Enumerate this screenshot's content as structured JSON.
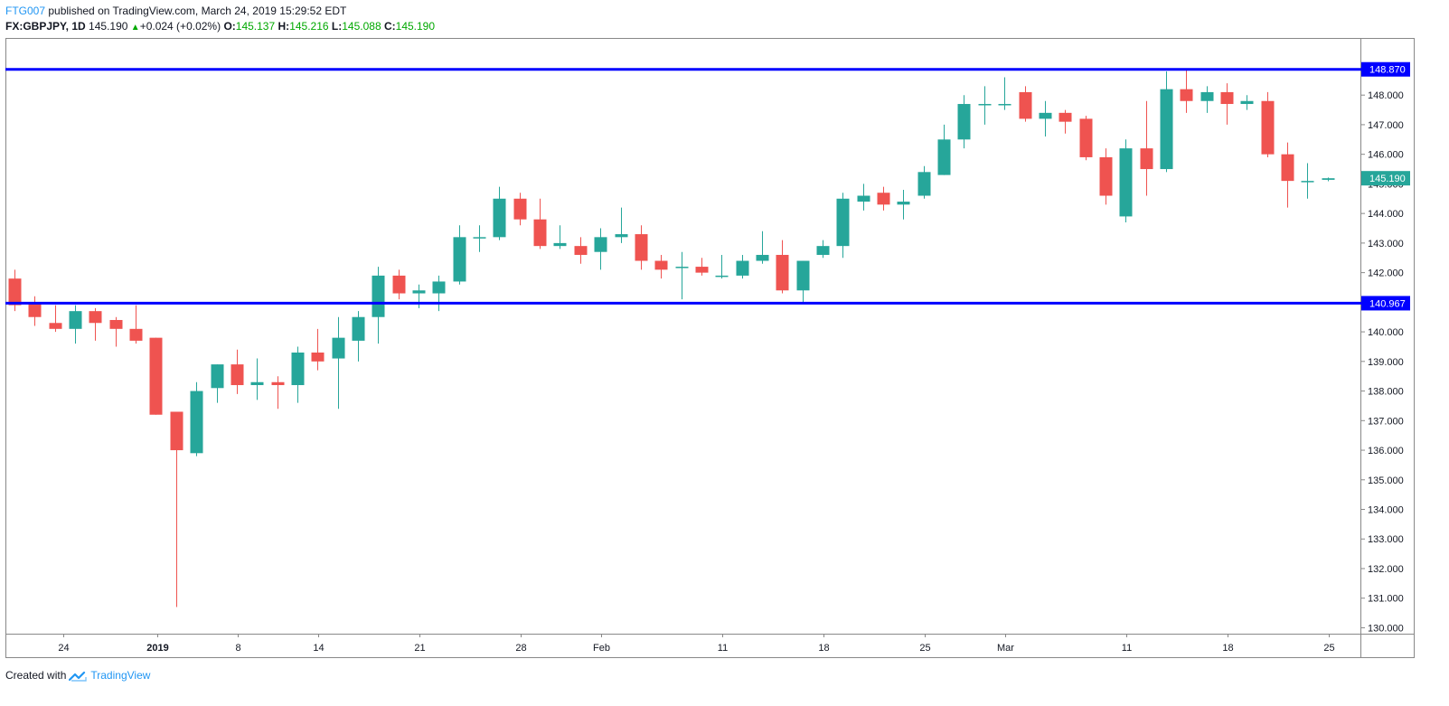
{
  "header": {
    "author": "FTG007",
    "published_text": "published on TradingView.com, March 24, 2019 15:29:52 EDT",
    "symbol": "FX:GBPJPY, 1D",
    "last": "145.190",
    "change": "+0.024 (+0.02%)",
    "o_label": "O:",
    "o_value": "145.137",
    "h_label": "H:",
    "h_value": "145.216",
    "l_label": "L:",
    "l_value": "145.088",
    "c_label": "C:",
    "c_value": "145.190"
  },
  "footer": {
    "created_with": "Created with",
    "brand": "TradingView",
    "logo_icon": "tradingview-logo-icon"
  },
  "colors": {
    "up": "#26a69a",
    "down": "#ef5350",
    "level": "#0000ff",
    "author": "#2196f3",
    "ohlc_value": "#00a800"
  },
  "chart_data": {
    "type": "candlestick",
    "x_ticks": [
      "24",
      "2019",
      "8",
      "14",
      "21",
      "28",
      "Feb",
      "11",
      "18",
      "25",
      "Mar",
      "11",
      "18",
      "25"
    ],
    "y_ticks": [
      "130.000",
      "131.000",
      "132.000",
      "133.000",
      "134.000",
      "135.000",
      "136.000",
      "137.000",
      "138.000",
      "139.000",
      "140.000",
      "141.000",
      "142.000",
      "143.000",
      "144.000",
      "145.000",
      "146.000",
      "147.000",
      "148.000"
    ],
    "ylim": [
      129.8,
      149.9
    ],
    "price_labels": {
      "upper_level": "148.870",
      "lower_level": "140.967",
      "last_price": "145.190"
    },
    "horizontal_levels": [
      148.87,
      140.967
    ],
    "last_price": 145.19,
    "candles": [
      {
        "o": 141.8,
        "h": 142.1,
        "l": 140.7,
        "c": 140.9
      },
      {
        "o": 141.0,
        "h": 141.2,
        "l": 140.2,
        "c": 140.5
      },
      {
        "o": 140.3,
        "h": 140.9,
        "l": 140.0,
        "c": 140.1
      },
      {
        "o": 140.1,
        "h": 140.9,
        "l": 139.6,
        "c": 140.7
      },
      {
        "o": 140.7,
        "h": 140.8,
        "l": 139.7,
        "c": 140.3
      },
      {
        "o": 140.4,
        "h": 140.5,
        "l": 139.5,
        "c": 140.1
      },
      {
        "o": 140.1,
        "h": 140.9,
        "l": 139.6,
        "c": 139.7
      },
      {
        "o": 139.8,
        "h": 139.8,
        "l": 137.2,
        "c": 137.2
      },
      {
        "o": 137.3,
        "h": 137.3,
        "l": 130.7,
        "c": 136.0
      },
      {
        "o": 135.9,
        "h": 138.3,
        "l": 135.8,
        "c": 138.0
      },
      {
        "o": 138.1,
        "h": 138.9,
        "l": 137.6,
        "c": 138.9
      },
      {
        "o": 138.9,
        "h": 139.4,
        "l": 137.9,
        "c": 138.2
      },
      {
        "o": 138.2,
        "h": 139.1,
        "l": 137.7,
        "c": 138.3
      },
      {
        "o": 138.3,
        "h": 138.5,
        "l": 137.4,
        "c": 138.2
      },
      {
        "o": 138.2,
        "h": 139.5,
        "l": 137.6,
        "c": 139.3
      },
      {
        "o": 139.3,
        "h": 140.1,
        "l": 138.7,
        "c": 139.0
      },
      {
        "o": 139.1,
        "h": 140.5,
        "l": 137.4,
        "c": 139.8
      },
      {
        "o": 139.7,
        "h": 140.7,
        "l": 139.0,
        "c": 140.5
      },
      {
        "o": 140.5,
        "h": 142.2,
        "l": 139.6,
        "c": 141.9
      },
      {
        "o": 141.9,
        "h": 142.1,
        "l": 141.1,
        "c": 141.3
      },
      {
        "o": 141.3,
        "h": 141.6,
        "l": 140.8,
        "c": 141.4
      },
      {
        "o": 141.3,
        "h": 141.9,
        "l": 140.7,
        "c": 141.7
      },
      {
        "o": 141.7,
        "h": 143.6,
        "l": 141.6,
        "c": 143.2
      },
      {
        "o": 143.2,
        "h": 143.6,
        "l": 142.7,
        "c": 143.2
      },
      {
        "o": 143.2,
        "h": 144.9,
        "l": 143.1,
        "c": 144.5
      },
      {
        "o": 144.5,
        "h": 144.7,
        "l": 143.6,
        "c": 143.8
      },
      {
        "o": 143.8,
        "h": 144.5,
        "l": 142.8,
        "c": 142.9
      },
      {
        "o": 142.9,
        "h": 143.6,
        "l": 142.8,
        "c": 143.0
      },
      {
        "o": 142.9,
        "h": 143.2,
        "l": 142.3,
        "c": 142.6
      },
      {
        "o": 142.7,
        "h": 143.5,
        "l": 142.1,
        "c": 143.2
      },
      {
        "o": 143.2,
        "h": 144.2,
        "l": 143.0,
        "c": 143.3
      },
      {
        "o": 143.3,
        "h": 143.6,
        "l": 142.1,
        "c": 142.4
      },
      {
        "o": 142.4,
        "h": 142.6,
        "l": 141.8,
        "c": 142.1
      },
      {
        "o": 142.2,
        "h": 142.7,
        "l": 141.1,
        "c": 142.2
      },
      {
        "o": 142.2,
        "h": 142.5,
        "l": 141.9,
        "c": 142.0
      },
      {
        "o": 141.9,
        "h": 142.6,
        "l": 141.8,
        "c": 141.9
      },
      {
        "o": 141.9,
        "h": 142.6,
        "l": 141.8,
        "c": 142.4
      },
      {
        "o": 142.4,
        "h": 143.4,
        "l": 142.3,
        "c": 142.6
      },
      {
        "o": 142.6,
        "h": 143.1,
        "l": 141.3,
        "c": 141.4
      },
      {
        "o": 141.4,
        "h": 142.4,
        "l": 141.0,
        "c": 142.4
      },
      {
        "o": 142.6,
        "h": 143.1,
        "l": 142.5,
        "c": 142.9
      },
      {
        "o": 142.9,
        "h": 144.7,
        "l": 142.5,
        "c": 144.5
      },
      {
        "o": 144.4,
        "h": 145.0,
        "l": 144.1,
        "c": 144.6
      },
      {
        "o": 144.7,
        "h": 144.9,
        "l": 144.1,
        "c": 144.3
      },
      {
        "o": 144.3,
        "h": 144.8,
        "l": 143.8,
        "c": 144.4
      },
      {
        "o": 144.6,
        "h": 145.6,
        "l": 144.5,
        "c": 145.4
      },
      {
        "o": 145.3,
        "h": 147.0,
        "l": 145.3,
        "c": 146.5
      },
      {
        "o": 146.5,
        "h": 148.0,
        "l": 146.2,
        "c": 147.7
      },
      {
        "o": 147.7,
        "h": 148.3,
        "l": 147.0,
        "c": 147.7
      },
      {
        "o": 147.7,
        "h": 148.6,
        "l": 147.5,
        "c": 147.7
      },
      {
        "o": 148.1,
        "h": 148.3,
        "l": 147.1,
        "c": 147.2
      },
      {
        "o": 147.2,
        "h": 147.8,
        "l": 146.6,
        "c": 147.4
      },
      {
        "o": 147.4,
        "h": 147.5,
        "l": 146.7,
        "c": 147.1
      },
      {
        "o": 147.2,
        "h": 147.3,
        "l": 145.8,
        "c": 145.9
      },
      {
        "o": 145.9,
        "h": 146.2,
        "l": 144.3,
        "c": 144.6
      },
      {
        "o": 143.9,
        "h": 146.5,
        "l": 143.7,
        "c": 146.2
      },
      {
        "o": 146.2,
        "h": 147.8,
        "l": 144.6,
        "c": 145.5
      },
      {
        "o": 145.5,
        "h": 148.8,
        "l": 145.4,
        "c": 148.2
      },
      {
        "o": 148.2,
        "h": 148.9,
        "l": 147.4,
        "c": 147.8
      },
      {
        "o": 147.8,
        "h": 148.3,
        "l": 147.4,
        "c": 148.1
      },
      {
        "o": 148.1,
        "h": 148.4,
        "l": 147.0,
        "c": 147.7
      },
      {
        "o": 147.7,
        "h": 148.0,
        "l": 147.5,
        "c": 147.8
      },
      {
        "o": 147.8,
        "h": 148.1,
        "l": 145.9,
        "c": 146.0
      },
      {
        "o": 146.0,
        "h": 146.4,
        "l": 144.2,
        "c": 145.1
      },
      {
        "o": 145.1,
        "h": 145.7,
        "l": 144.5,
        "c": 145.1
      },
      {
        "o": 145.137,
        "h": 145.216,
        "l": 145.088,
        "c": 145.19
      }
    ]
  }
}
